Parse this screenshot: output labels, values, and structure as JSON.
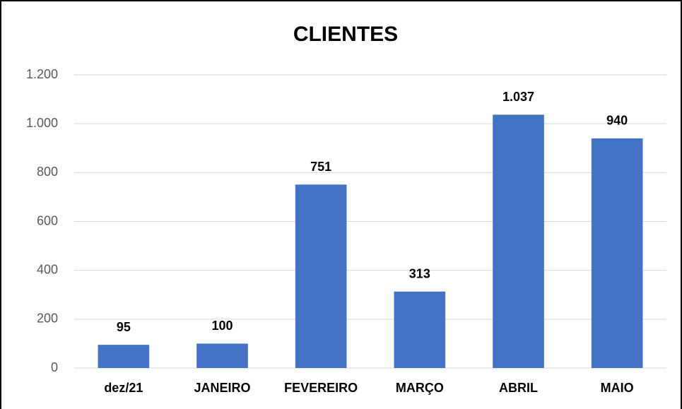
{
  "chart_data": {
    "type": "bar",
    "title": "CLIENTES",
    "categories": [
      "dez/21",
      "JANEIRO",
      "FEVEREIRO",
      "MARÇO",
      "ABRIL",
      "MAIO"
    ],
    "values": [
      95,
      100,
      751,
      313,
      1037,
      940
    ],
    "value_labels": [
      "95",
      "100",
      "751",
      "313",
      "1.037",
      "940"
    ],
    "color": "#4472c4",
    "ylim": [
      0,
      1200
    ],
    "yticks": [
      0,
      200,
      400,
      600,
      800,
      {
        "value": 1000,
        "label": "1.000"
      },
      {
        "value": 1200,
        "label": "1.200"
      }
    ],
    "grid": true
  }
}
